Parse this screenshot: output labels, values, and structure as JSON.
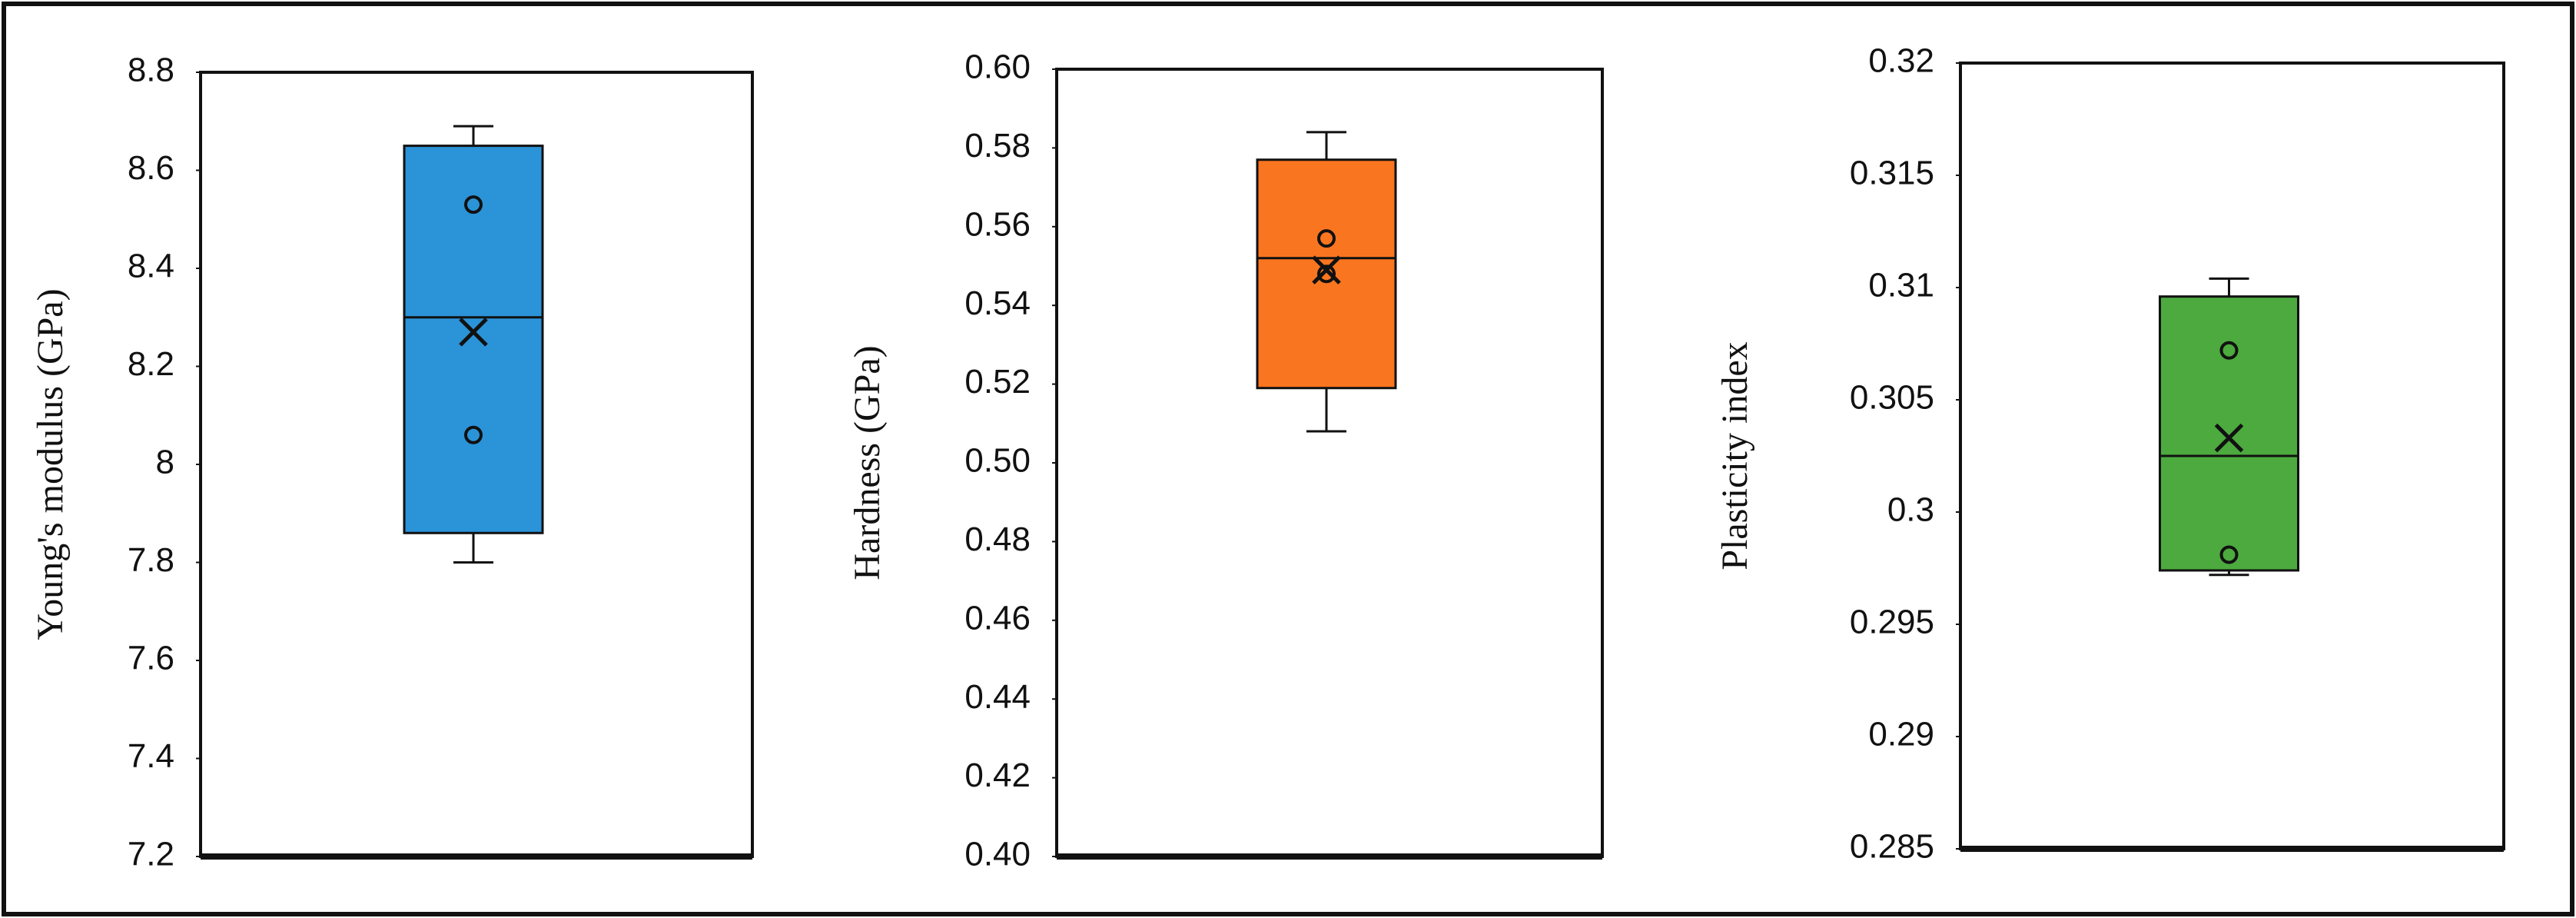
{
  "chart_data": [
    {
      "type": "box",
      "y_label": "Young's modulus (GPa)",
      "color": "#2b93d8",
      "ylim": [
        7.2,
        8.8
      ],
      "yticks": [
        7.2,
        7.4,
        7.6,
        7.8,
        8,
        8.2,
        8.4,
        8.6,
        8.8
      ],
      "stats": {
        "whisker_low": 7.8,
        "q1": 7.86,
        "median": 8.3,
        "q3": 8.65,
        "whisker_high": 8.69,
        "mean": 8.27,
        "points": [
          8.53,
          8.06
        ]
      }
    },
    {
      "type": "box",
      "y_label": "Hardness (GPa)",
      "color": "#fa7520",
      "ylim": [
        0.4,
        0.6
      ],
      "yticks": [
        {
          "value": 0.4,
          "label": "0.40"
        },
        0.42,
        0.44,
        0.46,
        0.48,
        {
          "value": 0.5,
          "label": "0.50"
        },
        0.52,
        0.54,
        0.56,
        0.58,
        {
          "value": 0.6,
          "label": "0.60"
        }
      ],
      "stats": {
        "whisker_low": 0.508,
        "q1": 0.519,
        "median": 0.552,
        "q3": 0.577,
        "whisker_high": 0.584,
        "mean": 0.549,
        "points": [
          0.557,
          0.548
        ]
      }
    },
    {
      "type": "box",
      "y_label": "Plasticity index",
      "color": "#4caa3e",
      "ylim": [
        0.285,
        0.32
      ],
      "yticks": [
        0.285,
        0.29,
        0.295,
        0.3,
        0.305,
        0.31,
        0.315,
        0.32
      ],
      "stats": {
        "whisker_low": 0.2972,
        "q1": 0.2974,
        "median": 0.3025,
        "q3": 0.3096,
        "whisker_high": 0.3104,
        "mean": 0.3033,
        "points": [
          0.3072,
          0.2981
        ]
      }
    }
  ]
}
